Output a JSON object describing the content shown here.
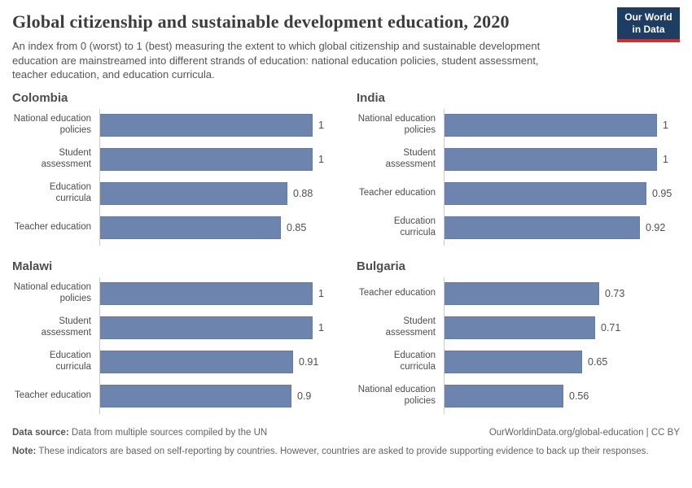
{
  "header": {
    "title": "Global citizenship and sustainable development education, 2020",
    "subtitle": "An index from 0 (worst) to 1 (best) measuring the extent to which global citizenship and sustainable development education are mainstreamed into different strands of education: national education policies, student assessment, teacher education, and education curricula.",
    "logo": {
      "line1": "Our World",
      "line2": "in Data"
    }
  },
  "colors": {
    "bar": "#6d84ae",
    "logo_bg": "#1d3d63",
    "logo_accent": "#d42b2f"
  },
  "chart_data": [
    {
      "type": "bar",
      "title": "Colombia",
      "orientation": "horizontal",
      "categories": [
        "National education policies",
        "Student assessment",
        "Education curricula",
        "Teacher education"
      ],
      "values": [
        1,
        1,
        0.88,
        0.85
      ],
      "xlim": [
        0,
        1
      ],
      "grid": false,
      "value_labels": true
    },
    {
      "type": "bar",
      "title": "India",
      "orientation": "horizontal",
      "categories": [
        "National education policies",
        "Student assessment",
        "Teacher education",
        "Education curricula"
      ],
      "values": [
        1,
        1,
        0.95,
        0.92
      ],
      "xlim": [
        0,
        1
      ],
      "grid": false,
      "value_labels": true
    },
    {
      "type": "bar",
      "title": "Malawi",
      "orientation": "horizontal",
      "categories": [
        "National education policies",
        "Student assessment",
        "Education curricula",
        "Teacher education"
      ],
      "values": [
        1,
        1,
        0.91,
        0.9
      ],
      "xlim": [
        0,
        1
      ],
      "grid": false,
      "value_labels": true
    },
    {
      "type": "bar",
      "title": "Bulgaria",
      "orientation": "horizontal",
      "categories": [
        "Teacher education",
        "Student assessment",
        "Education curricula",
        "National education policies"
      ],
      "values": [
        0.73,
        0.71,
        0.65,
        0.56
      ],
      "xlim": [
        0,
        1
      ],
      "grid": false,
      "value_labels": true
    }
  ],
  "footer": {
    "data_source_label": "Data source:",
    "data_source_text": "Data from multiple sources compiled by the UN",
    "attribution": "OurWorldinData.org/global-education | CC BY",
    "note_label": "Note:",
    "note_text": "These indicators are based on self-reporting by countries. However, countries are asked to provide supporting evidence to back up their responses."
  }
}
